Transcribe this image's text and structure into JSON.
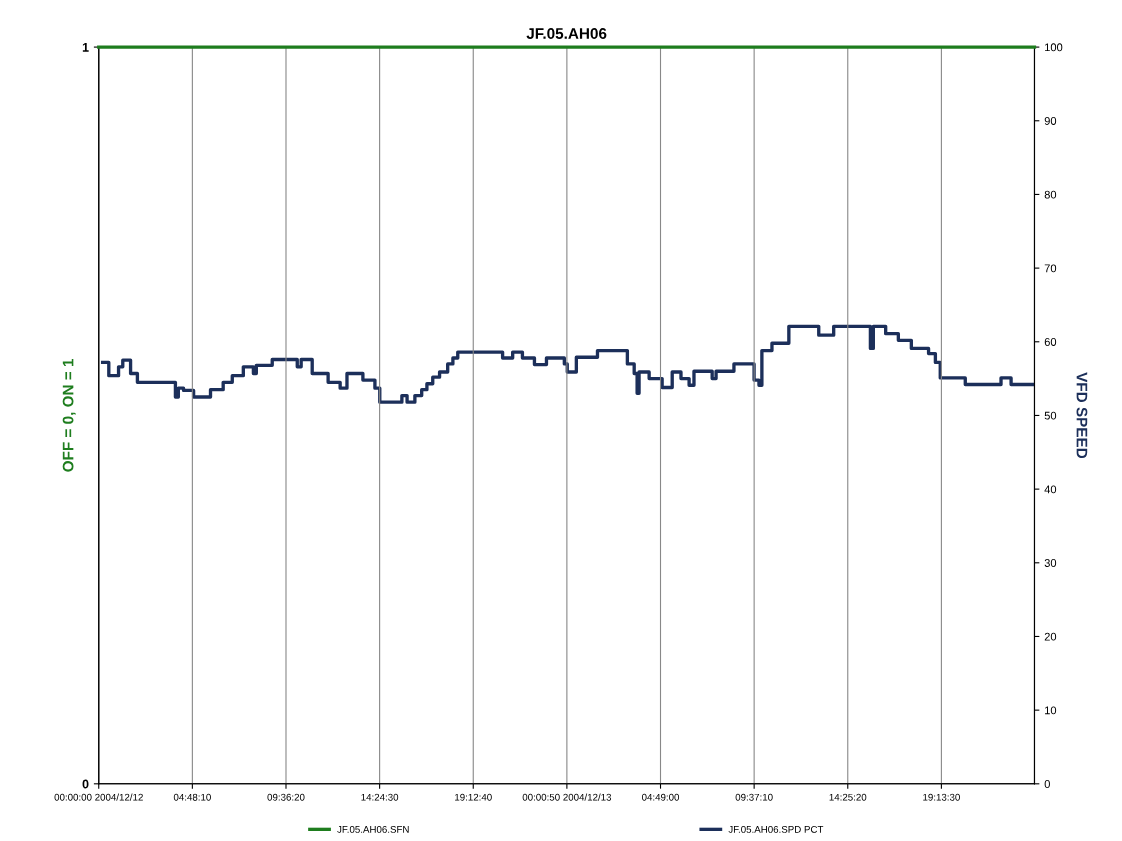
{
  "chart_data": {
    "type": "step",
    "title": "JF.05.AH06",
    "ylabel": "OFF = 0, ON = 1",
    "y2label": "VFD SPEED",
    "xlim": [
      "2004-12-12T00:00",
      "2004-12-14T00:00"
    ],
    "xticks": [
      {
        "value": "2004-12-12T00:00:00",
        "label": "00:00:00 2004/12/12"
      },
      {
        "value": "2004-12-12T04:48:10",
        "label": "04:48:10"
      },
      {
        "value": "2004-12-12T09:36:20",
        "label": "09:36:20"
      },
      {
        "value": "2004-12-12T14:24:30",
        "label": "14:24:30"
      },
      {
        "value": "2004-12-12T19:12:40",
        "label": "19:12:40"
      },
      {
        "value": "2004-12-13T00:00:50",
        "label": "00:00:50 2004/12/13"
      },
      {
        "value": "2004-12-13T04:49:00",
        "label": "04:49:00"
      },
      {
        "value": "2004-12-13T09:37:10",
        "label": "09:37:10"
      },
      {
        "value": "2004-12-13T14:25:20",
        "label": "14:25:20"
      },
      {
        "value": "2004-12-13T19:13:30",
        "label": "19:13:30"
      }
    ],
    "ylim": [
      0,
      1
    ],
    "yticks": [
      0,
      1
    ],
    "y2lim": [
      0,
      100
    ],
    "y2ticks": [
      0,
      10,
      20,
      30,
      40,
      50,
      60,
      70,
      80,
      90,
      100
    ],
    "grid": "x",
    "legend": "bottom",
    "series": [
      {
        "name": "JF.05.AH06.SFN",
        "color": "#1e7d1e",
        "x": [
          "2004-12-12T00:00",
          "2004-12-14T00:00"
        ],
        "values": [
          1,
          1
        ]
      },
      {
        "name": "JF.05.AH06.SPD PCT",
        "color": "#1c2f5a",
        "axis": "y2",
        "x": [
          "2004-12-12T00:12",
          "2004-12-12T00:31",
          "2004-12-12T01:01",
          "2004-12-12T01:14",
          "2004-12-12T01:38",
          "2004-12-12T01:59",
          "2004-12-12T03:56",
          "2004-12-12T04:05",
          "2004-12-12T04:21",
          "2004-12-12T04:52",
          "2004-12-12T05:44",
          "2004-12-12T06:23",
          "2004-12-12T06:51",
          "2004-12-12T07:25",
          "2004-12-12T07:56",
          "2004-12-12T08:05",
          "2004-12-12T08:54",
          "2004-12-12T10:11",
          "2004-12-12T10:23",
          "2004-12-12T10:57",
          "2004-12-12T11:46",
          "2004-12-12T12:23",
          "2004-12-12T12:44",
          "2004-12-12T13:33",
          "2004-12-12T14:10",
          "2004-12-12T14:25",
          "2004-12-12T15:33",
          "2004-12-12T15:49",
          "2004-12-12T16:13",
          "2004-12-12T16:34",
          "2004-12-12T16:50",
          "2004-12-12T17:08",
          "2004-12-12T17:29",
          "2004-12-12T17:54",
          "2004-12-12T18:10",
          "2004-12-12T18:25",
          "2004-12-12T20:43",
          "2004-12-12T21:14",
          "2004-12-12T21:44",
          "2004-12-12T22:21",
          "2004-12-12T22:58",
          "2004-12-12T23:53",
          "2004-12-13T00:02",
          "2004-12-13T00:30",
          "2004-12-13T01:35",
          "2004-12-13T03:07",
          "2004-12-13T03:28",
          "2004-12-13T03:37",
          "2004-12-13T03:43",
          "2004-12-13T04:14",
          "2004-12-13T04:54",
          "2004-12-13T05:25",
          "2004-12-13T05:52",
          "2004-12-13T06:17",
          "2004-12-13T06:32",
          "2004-12-13T07:28",
          "2004-12-13T07:40",
          "2004-12-13T08:35",
          "2004-12-13T09:37",
          "2004-12-13T09:52",
          "2004-12-13T10:01",
          "2004-12-13T10:32",
          "2004-12-13T11:24",
          "2004-12-13T12:56",
          "2004-12-13T13:42",
          "2004-12-13T15:35",
          "2004-12-13T15:44",
          "2004-12-13T16:22",
          "2004-12-13T17:01",
          "2004-12-13T17:41",
          "2004-12-13T18:34",
          "2004-12-13T18:55",
          "2004-12-13T19:10",
          "2004-12-13T20:27",
          "2004-12-13T22:17",
          "2004-12-13T22:48",
          "2004-12-13T23:56"
        ],
        "values": [
          57.2,
          55.4,
          56.6,
          57.5,
          55.7,
          54.5,
          52.5,
          53.7,
          53.4,
          52.5,
          53.5,
          54.5,
          55.4,
          56.6,
          55.7,
          56.8,
          57.6,
          56.6,
          57.6,
          55.7,
          54.5,
          53.7,
          55.7,
          54.8,
          53.7,
          51.8,
          52.7,
          51.8,
          52.7,
          53.5,
          54.3,
          55.2,
          55.9,
          57.0,
          57.8,
          58.6,
          57.8,
          58.6,
          57.8,
          56.9,
          57.8,
          57.0,
          55.9,
          57.9,
          58.8,
          57.0,
          55.7,
          53.0,
          55.9,
          55.0,
          53.8,
          55.9,
          55.0,
          54.1,
          56.0,
          55.0,
          56.0,
          57.0,
          54.8,
          54.1,
          58.8,
          59.8,
          62.1,
          60.9,
          62.1,
          59.1,
          62.1,
          61.1,
          60.2,
          59.1,
          58.4,
          57.2,
          55.1,
          54.2,
          55.1,
          54.2,
          54.2
        ]
      }
    ]
  }
}
